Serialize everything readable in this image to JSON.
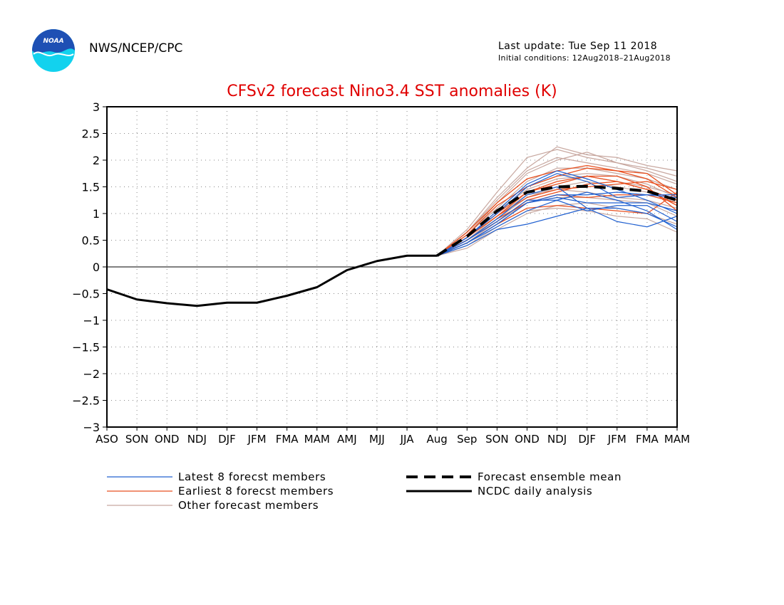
{
  "header": {
    "logo_text": "NOAA",
    "org": "NWS/NCEP/CPC",
    "last_update": "Last update: Tue Sep 11 2018",
    "initial_conditions": "Initial conditions: 12Aug2018–21Aug2018"
  },
  "colors": {
    "title": "#e00000",
    "latest": "#2060d0",
    "earliest": "#e85020",
    "other": "#c8a8a0",
    "observed": "#000000",
    "logo_blue": "#1e50b4",
    "logo_cyan": "#12d2ee"
  },
  "chart_data": {
    "type": "line",
    "title": "CFSv2 forecast Nino3.4 SST anomalies (K)",
    "x_categories": [
      "ASO",
      "SON",
      "OND",
      "NDJ",
      "DJF",
      "JFM",
      "FMA",
      "MAM",
      "AMJ",
      "MJJ",
      "JJA",
      "Aug",
      "Sep",
      "SON",
      "OND",
      "NDJ",
      "DJF",
      "JFM",
      "FMA",
      "MAM"
    ],
    "y_ticks": [
      "3",
      "2.5",
      "2",
      "1.5",
      "1",
      "0.5",
      "0",
      "−0.5",
      "−1",
      "−1.5",
      "−2",
      "−2.5",
      "−3"
    ],
    "ylim": [
      -3,
      3
    ],
    "grid": "dotted",
    "legend_position": "below",
    "legend": [
      {
        "label": "Latest 8 forecst members",
        "style": "latest"
      },
      {
        "label": "Earliest 8 forecst members",
        "style": "earliest"
      },
      {
        "label": "Other forecast members",
        "style": "other"
      },
      {
        "label": "Forecast ensemble mean",
        "style": "mean"
      },
      {
        "label": "NCDC daily analysis",
        "style": "observed"
      }
    ],
    "observed": {
      "x": [
        "ASO",
        "SON",
        "OND",
        "NDJ",
        "DJF",
        "JFM",
        "FMA",
        "MAM",
        "AMJ",
        "MJJ",
        "JJA",
        "Aug"
      ],
      "values": [
        -0.42,
        -0.61,
        -0.68,
        -0.73,
        -0.67,
        -0.67,
        -0.54,
        -0.38,
        -0.06,
        0.11,
        0.21,
        0.21
      ]
    },
    "ensemble_mean": {
      "x": [
        "Aug",
        "Sep",
        "SON",
        "OND",
        "NDJ",
        "DJF",
        "JFM",
        "FMA",
        "MAM"
      ],
      "values": [
        0.21,
        0.57,
        1.05,
        1.4,
        1.5,
        1.51,
        1.47,
        1.42,
        1.25
      ]
    },
    "members": {
      "x": [
        "Aug",
        "Sep",
        "SON",
        "OND",
        "NDJ",
        "DJF",
        "JFM",
        "FMA",
        "MAM"
      ],
      "latest": [
        [
          0.21,
          0.45,
          0.8,
          1.2,
          1.3,
          1.2,
          1.2,
          1.2,
          1.05
        ],
        [
          0.21,
          0.4,
          0.7,
          0.8,
          0.95,
          1.1,
          1.1,
          1.0,
          0.75
        ],
        [
          0.21,
          0.55,
          1.0,
          1.5,
          1.75,
          1.6,
          1.3,
          1.35,
          1.35
        ],
        [
          0.21,
          0.5,
          0.9,
          1.35,
          1.5,
          1.1,
          0.85,
          0.75,
          0.95
        ],
        [
          0.21,
          0.45,
          0.8,
          1.2,
          1.35,
          1.35,
          1.4,
          1.35,
          1.3
        ],
        [
          0.21,
          0.55,
          1.05,
          1.55,
          1.8,
          1.65,
          1.45,
          1.25,
          1.0
        ],
        [
          0.21,
          0.5,
          0.85,
          1.25,
          1.25,
          1.05,
          1.15,
          1.15,
          0.85
        ],
        [
          0.21,
          0.45,
          0.75,
          1.05,
          1.25,
          1.4,
          1.25,
          1.05,
          0.7
        ]
      ],
      "earliest": [
        [
          0.21,
          0.6,
          1.15,
          1.5,
          1.7,
          1.85,
          1.8,
          1.65,
          1.3
        ],
        [
          0.21,
          0.55,
          1.0,
          1.4,
          1.6,
          1.7,
          1.6,
          1.45,
          1.15
        ],
        [
          0.21,
          0.65,
          1.2,
          1.65,
          1.8,
          1.9,
          1.8,
          1.75,
          1.35
        ],
        [
          0.21,
          0.5,
          0.9,
          1.2,
          1.35,
          1.3,
          1.35,
          1.35,
          1.2
        ],
        [
          0.21,
          0.45,
          0.8,
          1.1,
          1.15,
          1.1,
          1.05,
          1.0,
          1.4
        ],
        [
          0.21,
          0.55,
          0.95,
          1.4,
          1.55,
          1.7,
          1.7,
          1.5,
          1.05
        ],
        [
          0.21,
          0.55,
          0.95,
          1.3,
          1.45,
          1.5,
          1.55,
          1.6,
          1.45
        ],
        [
          0.21,
          0.5,
          0.85,
          1.25,
          1.4,
          1.55,
          1.6,
          1.45,
          1.25
        ]
      ],
      "other": [
        [
          0.21,
          0.7,
          1.4,
          2.05,
          2.2,
          2.05,
          1.95,
          1.85,
          1.7
        ],
        [
          0.21,
          0.65,
          1.3,
          1.85,
          2.25,
          2.1,
          2.05,
          1.9,
          1.8
        ],
        [
          0.21,
          0.6,
          1.2,
          1.75,
          2.0,
          2.15,
          1.95,
          1.8,
          1.6
        ],
        [
          0.21,
          0.55,
          1.0,
          1.5,
          1.7,
          1.75,
          1.7,
          1.55,
          1.3
        ],
        [
          0.21,
          0.4,
          0.75,
          1.05,
          1.1,
          1.05,
          0.95,
          0.9,
          0.65
        ],
        [
          0.21,
          0.5,
          0.9,
          1.3,
          1.5,
          1.6,
          1.5,
          1.4,
          1.2
        ],
        [
          0.21,
          0.45,
          0.85,
          1.2,
          1.3,
          1.3,
          1.25,
          1.2,
          0.95
        ],
        [
          0.21,
          0.6,
          1.1,
          1.6,
          1.85,
          1.85,
          1.75,
          1.65,
          1.45
        ],
        [
          0.21,
          0.35,
          0.7,
          1.0,
          1.15,
          1.2,
          1.1,
          1.0,
          0.8
        ],
        [
          0.21,
          0.55,
          1.05,
          1.45,
          1.65,
          1.7,
          1.6,
          1.5,
          1.35
        ],
        [
          0.21,
          0.65,
          1.25,
          1.8,
          2.05,
          1.95,
          1.85,
          1.75,
          1.55
        ],
        [
          0.21,
          0.5,
          0.95,
          1.35,
          1.45,
          1.4,
          1.3,
          1.25,
          1.1
        ]
      ]
    }
  }
}
